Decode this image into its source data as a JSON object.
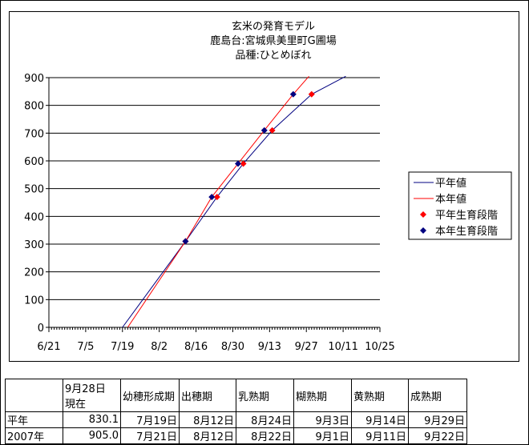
{
  "chart_data": {
    "type": "line",
    "title_lines": [
      "玄米の発育モデル",
      "鹿島台:宮城県美里町G圃場",
      "品種:ひとめぼれ"
    ],
    "xlabel": "",
    "ylabel": "",
    "x_ticks": [
      "6/21",
      "7/5",
      "7/19",
      "8/2",
      "8/16",
      "8/30",
      "9/13",
      "9/27",
      "10/11",
      "10/25"
    ],
    "xlim": [
      "6/21",
      "10/25"
    ],
    "y_ticks": [
      0,
      100,
      200,
      300,
      400,
      500,
      600,
      700,
      800,
      900
    ],
    "ylim": [
      0,
      900
    ],
    "grid": "horizontal",
    "legend_position": "right",
    "series": [
      {
        "name": "平年値",
        "kind": "line",
        "color": "#000080",
        "points": [
          [
            "7/19",
            0
          ],
          [
            "8/12",
            310
          ],
          [
            "8/24",
            470
          ],
          [
            "9/3",
            590
          ],
          [
            "9/14",
            710
          ],
          [
            "9/29",
            840
          ],
          [
            "10/12",
            905
          ]
        ]
      },
      {
        "name": "本年値",
        "kind": "line",
        "color": "#ff0000",
        "points": [
          [
            "7/21",
            0
          ],
          [
            "8/12",
            310
          ],
          [
            "8/22",
            470
          ],
          [
            "9/1",
            590
          ],
          [
            "9/11",
            710
          ],
          [
            "9/22",
            840
          ],
          [
            "9/28",
            905
          ]
        ]
      },
      {
        "name": "平年生育段階",
        "kind": "marker",
        "color": "#ff0000",
        "points": [
          [
            "8/12",
            310
          ],
          [
            "8/24",
            470
          ],
          [
            "9/3",
            590
          ],
          [
            "9/14",
            710
          ],
          [
            "9/29",
            840
          ]
        ]
      },
      {
        "name": "本年生育段階",
        "kind": "marker",
        "color": "#000080",
        "points": [
          [
            "8/12",
            310
          ],
          [
            "8/22",
            470
          ],
          [
            "9/1",
            590
          ],
          [
            "9/11",
            710
          ],
          [
            "9/22",
            840
          ]
        ]
      }
    ]
  },
  "table": {
    "headers": [
      "",
      "9月28日\n現在",
      "幼穂形成期",
      "出穂期",
      "乳熟期",
      "糊熟期",
      "黄熟期",
      "成熟期"
    ],
    "rows": [
      [
        "平年",
        "830.1",
        "7月19日",
        "8月12日",
        "8月24日",
        "9月3日",
        "9月14日",
        "9月29日"
      ],
      [
        "2007年",
        "905.0",
        "7月21日",
        "8月12日",
        "8月22日",
        "9月1日",
        "9月11日",
        "9月22日"
      ]
    ]
  }
}
